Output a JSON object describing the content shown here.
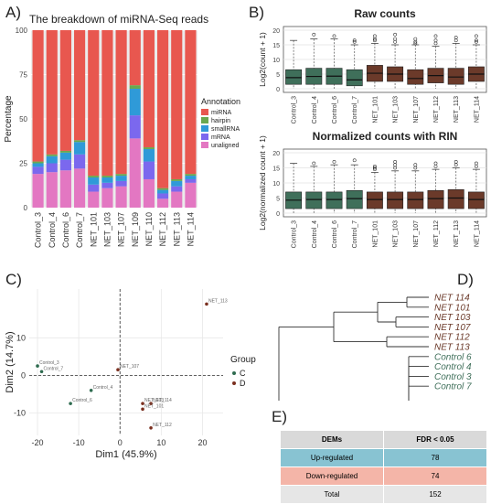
{
  "panel_labels": [
    "A)",
    "B)",
    "C)",
    "D)",
    "E)"
  ],
  "chart_data": [
    {
      "type": "bar",
      "stacked": true,
      "title": "The breakdown of miRNA-Seq reads",
      "xlabel": "",
      "ylabel": "Percentage",
      "ylim": [
        0,
        100
      ],
      "yticks": [
        0,
        25,
        50,
        75,
        100
      ],
      "categories": [
        "Control_3",
        "Control_4",
        "Control_6",
        "Control_7",
        "NET_101",
        "NET_103",
        "NET_107",
        "NET_109",
        "NET_110",
        "NET_112",
        "NET_113",
        "NET_114"
      ],
      "legend_title": "Annotation",
      "legend_position": "right",
      "series": [
        {
          "name": "unaligned",
          "color": "#e377c2",
          "values": [
            19,
            20,
            21,
            22,
            9,
            11,
            12,
            39,
            16,
            5,
            9,
            14
          ]
        },
        {
          "name": "mRNA",
          "color": "#7b68ee",
          "values": [
            4,
            5,
            6,
            8,
            4,
            3,
            3,
            13,
            10,
            3,
            3,
            2
          ]
        },
        {
          "name": "smallRNA",
          "color": "#2f9ad8",
          "values": [
            2,
            4,
            4,
            7,
            4,
            3,
            3,
            15,
            7,
            2,
            3,
            2
          ]
        },
        {
          "name": "hairpin",
          "color": "#6aa84f",
          "values": [
            1,
            1,
            1,
            1,
            1,
            1,
            1,
            2,
            1,
            1,
            1,
            1
          ]
        },
        {
          "name": "miRNA",
          "color": "#e8574f",
          "values": [
            74,
            70,
            68,
            62,
            82,
            82,
            81,
            31,
            66,
            89,
            84,
            81
          ]
        }
      ]
    },
    {
      "type": "box",
      "title": "Raw counts",
      "ylabel": "Log2(count + 1)",
      "ylim": [
        0,
        20
      ],
      "yticks": [
        0,
        5,
        10,
        15,
        20
      ],
      "categories": [
        "Control_3",
        "Control_4",
        "Control_6",
        "Control_7",
        "NET_101",
        "NET_103",
        "NET_107",
        "NET_112",
        "NET_113",
        "NET_114"
      ],
      "colors": {
        "Control": "#3f6f5a",
        "NET": "#6b3a2a"
      },
      "boxes": [
        {
          "min": 0,
          "q1": 1.5,
          "median": 3.8,
          "q3": 6.5,
          "max": 16.5,
          "outliers": []
        },
        {
          "min": 0,
          "q1": 1.5,
          "median": 4.2,
          "q3": 7.0,
          "max": 17.0,
          "outliers": [
            18.5
          ]
        },
        {
          "min": 0,
          "q1": 1.5,
          "median": 4.3,
          "q3": 7.0,
          "max": 17.0,
          "outliers": [
            18.0
          ]
        },
        {
          "min": 0,
          "q1": 1.0,
          "median": 3.0,
          "q3": 6.5,
          "max": 15.0,
          "outliers": [
            16.0,
            16.5
          ]
        },
        {
          "min": 0,
          "q1": 2.5,
          "median": 5.3,
          "q3": 8.0,
          "max": 15.5,
          "outliers": [
            16.5,
            17.0,
            18.0
          ]
        },
        {
          "min": 0,
          "q1": 2.5,
          "median": 5.0,
          "q3": 7.5,
          "max": 15.0,
          "outliers": [
            16.0,
            17.0,
            18.5
          ]
        },
        {
          "min": 0,
          "q1": 1.5,
          "median": 3.5,
          "q3": 6.5,
          "max": 15.0,
          "outliers": [
            15.5,
            16.0,
            17.0
          ]
        },
        {
          "min": 0,
          "q1": 2.0,
          "median": 4.5,
          "q3": 7.0,
          "max": 14.5,
          "outliers": [
            15.5,
            16.5,
            18.0
          ]
        },
        {
          "min": 0,
          "q1": 1.5,
          "median": 4.0,
          "q3": 7.0,
          "max": 15.5,
          "outliers": [
            16.5,
            17.5
          ]
        },
        {
          "min": 0,
          "q1": 2.5,
          "median": 5.0,
          "q3": 7.5,
          "max": 15.0,
          "outliers": [
            16.0,
            16.5,
            18.0
          ]
        }
      ]
    },
    {
      "type": "box",
      "title": "Normalized counts with RIN",
      "ylabel": "Log2(normalized count + 1)",
      "ylim": [
        0,
        20
      ],
      "yticks": [
        0,
        5,
        10,
        15,
        20
      ],
      "categories": [
        "Control_3",
        "Control_4",
        "Control_6",
        "Control_7",
        "NET_101",
        "NET_103",
        "NET_107",
        "NET_112",
        "NET_113",
        "NET_114"
      ],
      "colors": {
        "Control": "#3f6f5a",
        "NET": "#6b3a2a"
      },
      "boxes": [
        {
          "min": 0,
          "q1": 1.5,
          "median": 4.3,
          "q3": 7.0,
          "max": 16.5,
          "outliers": []
        },
        {
          "min": 0,
          "q1": 1.5,
          "median": 4.5,
          "q3": 7.0,
          "max": 15.5,
          "outliers": [
            16.5
          ]
        },
        {
          "min": 0,
          "q1": 1.5,
          "median": 4.5,
          "q3": 7.0,
          "max": 16.0,
          "outliers": [
            17.0
          ]
        },
        {
          "min": 0,
          "q1": 1.5,
          "median": 4.8,
          "q3": 7.5,
          "max": 16.0,
          "outliers": [
            17.5
          ]
        },
        {
          "min": 0,
          "q1": 1.5,
          "median": 4.5,
          "q3": 7.0,
          "max": 13.5,
          "outliers": [
            14.5,
            15.0,
            15.5
          ]
        },
        {
          "min": 0,
          "q1": 1.5,
          "median": 4.5,
          "q3": 7.0,
          "max": 14.0,
          "outliers": [
            15.0,
            16.0,
            17.0
          ]
        },
        {
          "min": 0,
          "q1": 1.5,
          "median": 4.5,
          "q3": 7.0,
          "max": 14.0,
          "outliers": [
            15.0,
            16.0
          ]
        },
        {
          "min": 0,
          "q1": 1.5,
          "median": 4.8,
          "q3": 7.5,
          "max": 14.5,
          "outliers": [
            15.5,
            16.5
          ]
        },
        {
          "min": 0,
          "q1": 1.5,
          "median": 5.0,
          "q3": 7.8,
          "max": 15.0,
          "outliers": [
            16.0,
            17.0
          ]
        },
        {
          "min": 0,
          "q1": 1.5,
          "median": 4.5,
          "q3": 7.0,
          "max": 14.5,
          "outliers": [
            15.5,
            16.5
          ]
        }
      ]
    },
    {
      "type": "scatter",
      "xlabel": "Dim1 (45.9%)",
      "ylabel": "Dim2 (14.7%)",
      "xlim": [
        -22,
        25
      ],
      "ylim": [
        -16,
        23
      ],
      "xticks": [
        -20,
        -10,
        0,
        10,
        20
      ],
      "yticks": [
        -10,
        0,
        10
      ],
      "legend_title": "Group",
      "legend_position": "right",
      "groups": [
        {
          "name": "C",
          "color": "#2e6b4f"
        },
        {
          "name": "D",
          "color": "#7a2f1f"
        }
      ],
      "points": [
        {
          "label": "NET_113",
          "x": 21,
          "y": 19,
          "group": "D"
        },
        {
          "label": "Control_3",
          "x": -20,
          "y": 2.5,
          "group": "C"
        },
        {
          "label": "Control_7",
          "x": -19,
          "y": 1,
          "group": "C"
        },
        {
          "label": "NET_107",
          "x": -0.5,
          "y": 1.5,
          "group": "D"
        },
        {
          "label": "Control_4",
          "x": -7,
          "y": -4,
          "group": "C"
        },
        {
          "label": "Control_6",
          "x": -12,
          "y": -7.5,
          "group": "C"
        },
        {
          "label": "NET_103",
          "x": 5.5,
          "y": -7.5,
          "group": "D"
        },
        {
          "label": "NET_114",
          "x": 7.5,
          "y": -7.5,
          "group": "D"
        },
        {
          "label": "NET_101",
          "x": 5.5,
          "y": -9,
          "group": "D"
        },
        {
          "label": "NET_112",
          "x": 7.5,
          "y": -14,
          "group": "D"
        }
      ]
    }
  ],
  "dendrogram": {
    "labels": [
      "NET 114",
      "NET 101",
      "NET 103",
      "NET 107",
      "NET 112",
      "NET 113",
      "Control 6",
      "Control 4",
      "Control 3",
      "Control 7"
    ],
    "label_colors": {
      "NET": "#6b3a2a",
      "Control": "#3f6f5a"
    }
  },
  "dem_table": {
    "headers": [
      "DEMs",
      "FDR < 0.05"
    ],
    "rows": [
      {
        "label": "Up-regulated",
        "value": "78",
        "color": "#88c3d2"
      },
      {
        "label": "Down-regulated",
        "value": "74",
        "color": "#f4b5a8"
      },
      {
        "label": "Total",
        "value": "152",
        "color": "#e6e6e6"
      }
    ]
  }
}
